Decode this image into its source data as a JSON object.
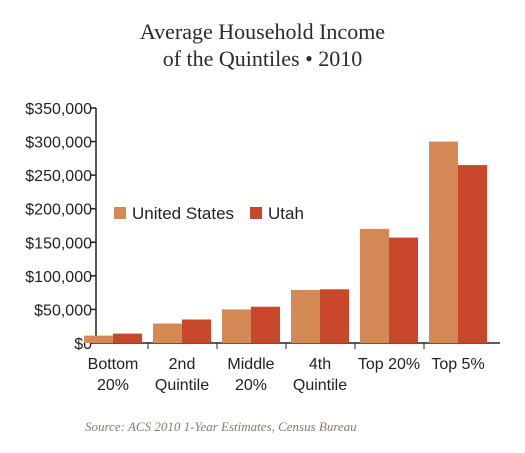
{
  "title_lines": [
    "Average Household Income",
    "of the Quintiles • 2010"
  ],
  "source": "Source: ACS 2010 1-Year Estimates, Census Bureau",
  "chart_data": {
    "type": "bar",
    "title": "Average Household Income of the Quintiles • 2010",
    "categories": [
      [
        "Bottom",
        "20%"
      ],
      [
        "2nd",
        "Quintile"
      ],
      [
        "Middle",
        "20%"
      ],
      [
        "4th",
        "Quintile"
      ],
      [
        "Top 20%"
      ],
      [
        "Top 5%"
      ]
    ],
    "series": [
      {
        "name": "United States",
        "color": "#d58a56",
        "values": [
          11000,
          29000,
          50000,
          79000,
          170000,
          300000
        ]
      },
      {
        "name": "Utah",
        "color": "#c9472a",
        "values": [
          14000,
          35000,
          54000,
          80000,
          157000,
          265000
        ]
      }
    ],
    "ylim": [
      0,
      350000
    ],
    "yticks": [
      0,
      50000,
      100000,
      150000,
      200000,
      250000,
      300000,
      350000
    ],
    "ytick_labels": [
      "$0",
      "$50,000",
      "$100,000",
      "$150,000",
      "$200,000",
      "$250,000",
      "$300,000",
      "$350,000"
    ],
    "grid": false,
    "legend_position": "left"
  }
}
